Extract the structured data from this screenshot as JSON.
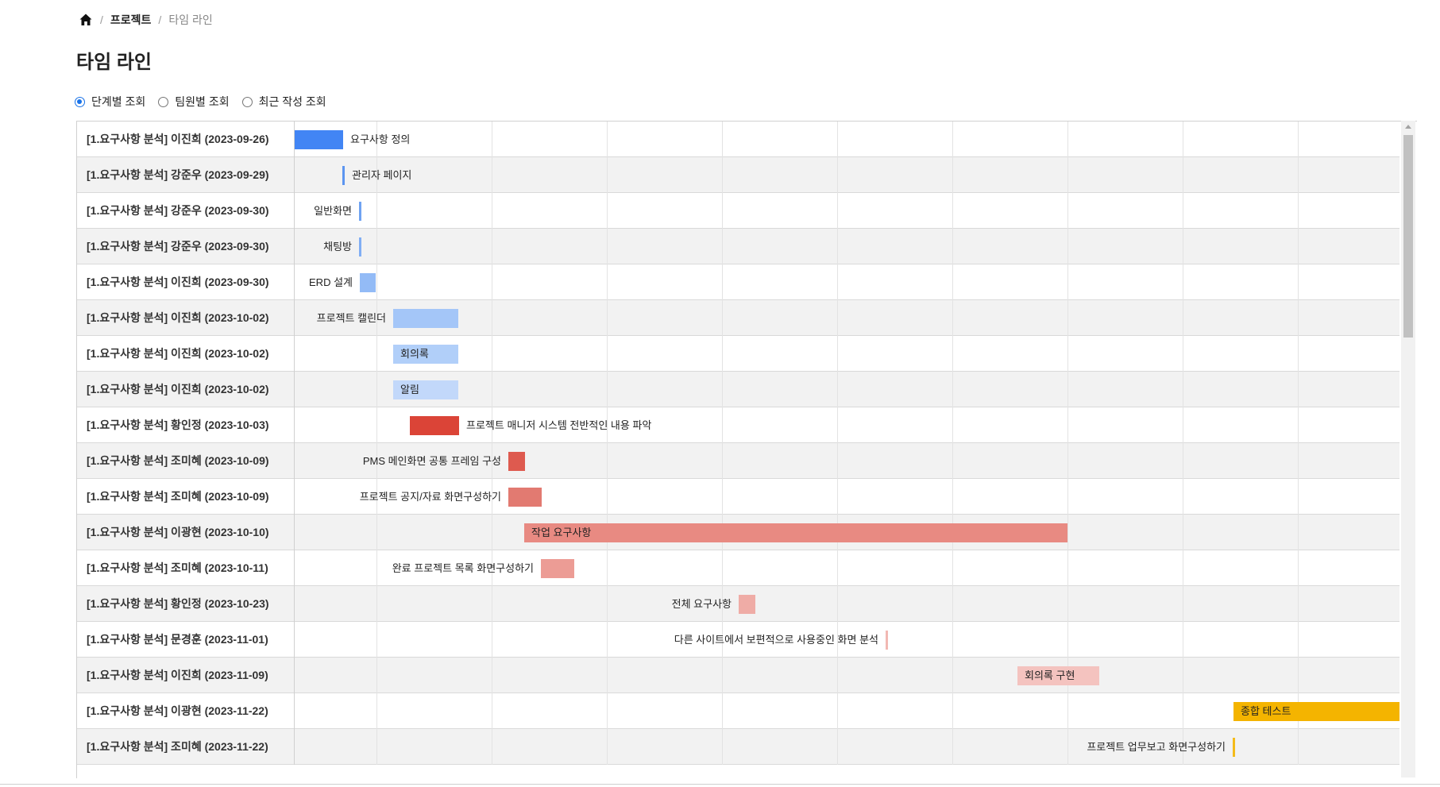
{
  "breadcrumb": {
    "home_icon": "home-icon",
    "project": "프로젝트",
    "current": "타임 라인",
    "separator": "/"
  },
  "page_title": "타임 라인",
  "view_options": [
    {
      "label": "단계별 조회",
      "checked": true
    },
    {
      "label": "팀원별 조회",
      "checked": false
    },
    {
      "label": "최근 작성 조회",
      "checked": false
    }
  ],
  "timeline": {
    "rows": [
      {
        "label": "[1.요구사항 분석] 이진희 (2023-09-26)",
        "task": "요구사항 정의",
        "color": "#4285f4"
      },
      {
        "label": "[1.요구사항 분석] 강준우 (2023-09-29)",
        "task": "관리자 페이지",
        "color": "#5c95f0"
      },
      {
        "label": "[1.요구사항 분석] 강준우 (2023-09-30)",
        "task": "일반화면",
        "color": "#6fa3f2"
      },
      {
        "label": "[1.요구사항 분석] 강준우 (2023-09-30)",
        "task": "채팅방",
        "color": "#80aef4"
      },
      {
        "label": "[1.요구사항 분석] 이진희 (2023-09-30)",
        "task": "ERD 설계",
        "color": "#93bbf6"
      },
      {
        "label": "[1.요구사항 분석] 이진희 (2023-10-02)",
        "task": "프로젝트 캘린더",
        "color": "#a4c6f8"
      },
      {
        "label": "[1.요구사항 분석] 이진희 (2023-10-02)",
        "task": "회의록",
        "color": "#b1cff9"
      },
      {
        "label": "[1.요구사항 분석] 이진희 (2023-10-02)",
        "task": "알림",
        "color": "#c2d8fa"
      },
      {
        "label": "[1.요구사항 분석] 황인정 (2023-10-03)",
        "task": "프로젝트 매니저 시스템 전반적인 내용 파악",
        "color": "#db4437"
      },
      {
        "label": "[1.요구사항 분석] 조미혜 (2023-10-09)",
        "task": "PMS 메인화면 공통 프레임 구성",
        "color": "#de5a4f"
      },
      {
        "label": "[1.요구사항 분석] 조미혜 (2023-10-09)",
        "task": "프로젝트 공지/자료 화면구성하기",
        "color": "#e27a71"
      },
      {
        "label": "[1.요구사항 분석] 이광현 (2023-10-10)",
        "task": "작업 요구사항",
        "color": "#e88a82"
      },
      {
        "label": "[1.요구사항 분석] 조미혜 (2023-10-11)",
        "task": "완료 프로젝트 목록 화면구성하기",
        "color": "#ec9c95"
      },
      {
        "label": "[1.요구사항 분석] 황인정 (2023-10-23)",
        "task": "전체 요구사항",
        "color": "#efaca6"
      },
      {
        "label": "[1.요구사항 분석] 문경훈 (2023-11-01)",
        "task": "다른 사이트에서 보편적으로 사용중인 화면 분석",
        "color": "#f2b8b3"
      },
      {
        "label": "[1.요구사항 분석] 이진희 (2023-11-09)",
        "task": "회의록 구현",
        "color": "#f4c3bf"
      },
      {
        "label": "[1.요구사항 분석] 이광현 (2023-11-22)",
        "task": "종합 테스트",
        "color": "#f4b400"
      },
      {
        "label": "[1.요구사항 분석] 조미혜 (2023-11-22)",
        "task": "프로젝트 업무보고 화면구성하기",
        "color": "#f4bb1a"
      }
    ]
  }
}
